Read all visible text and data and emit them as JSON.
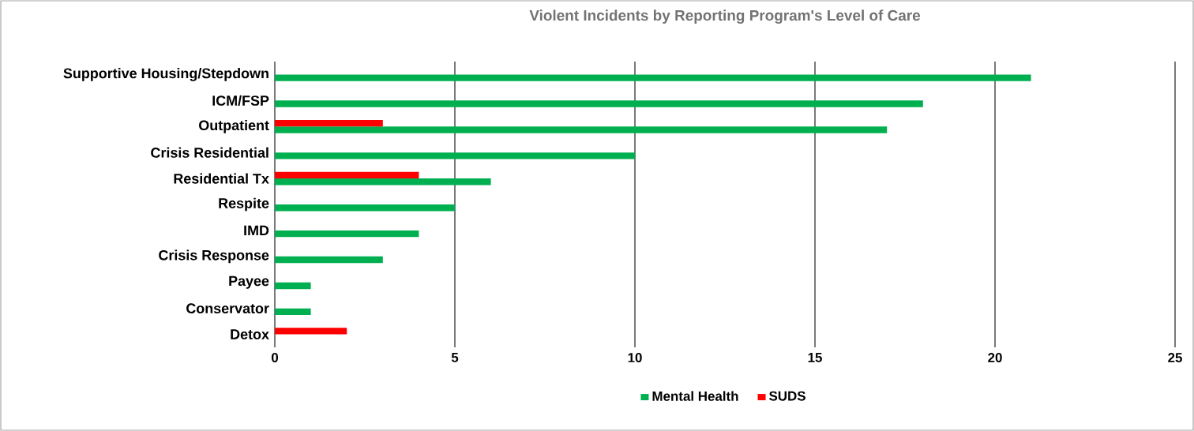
{
  "chart_data": {
    "type": "bar",
    "orientation": "horizontal",
    "title": "Violent Incidents by Reporting Program's Level of Care",
    "categories": [
      "Supportive Housing/Stepdown",
      "ICM/FSP",
      "Outpatient",
      "Crisis Residential",
      "Residential Tx",
      "Respite",
      "IMD",
      "Crisis Response",
      "Payee",
      "Conservator",
      "Detox"
    ],
    "series": [
      {
        "name": "Mental Health",
        "color": "#00b050",
        "values": [
          21,
          18,
          17,
          10,
          6,
          5,
          4,
          3,
          1,
          1,
          null
        ]
      },
      {
        "name": "SUDS",
        "color": "#ff0000",
        "values": [
          null,
          null,
          3,
          null,
          4,
          null,
          null,
          null,
          null,
          null,
          2
        ]
      }
    ],
    "xlim": [
      0,
      25
    ],
    "xticks": [
      0,
      5,
      10,
      15,
      20,
      25
    ],
    "grid": "x",
    "legend": "bottom"
  }
}
